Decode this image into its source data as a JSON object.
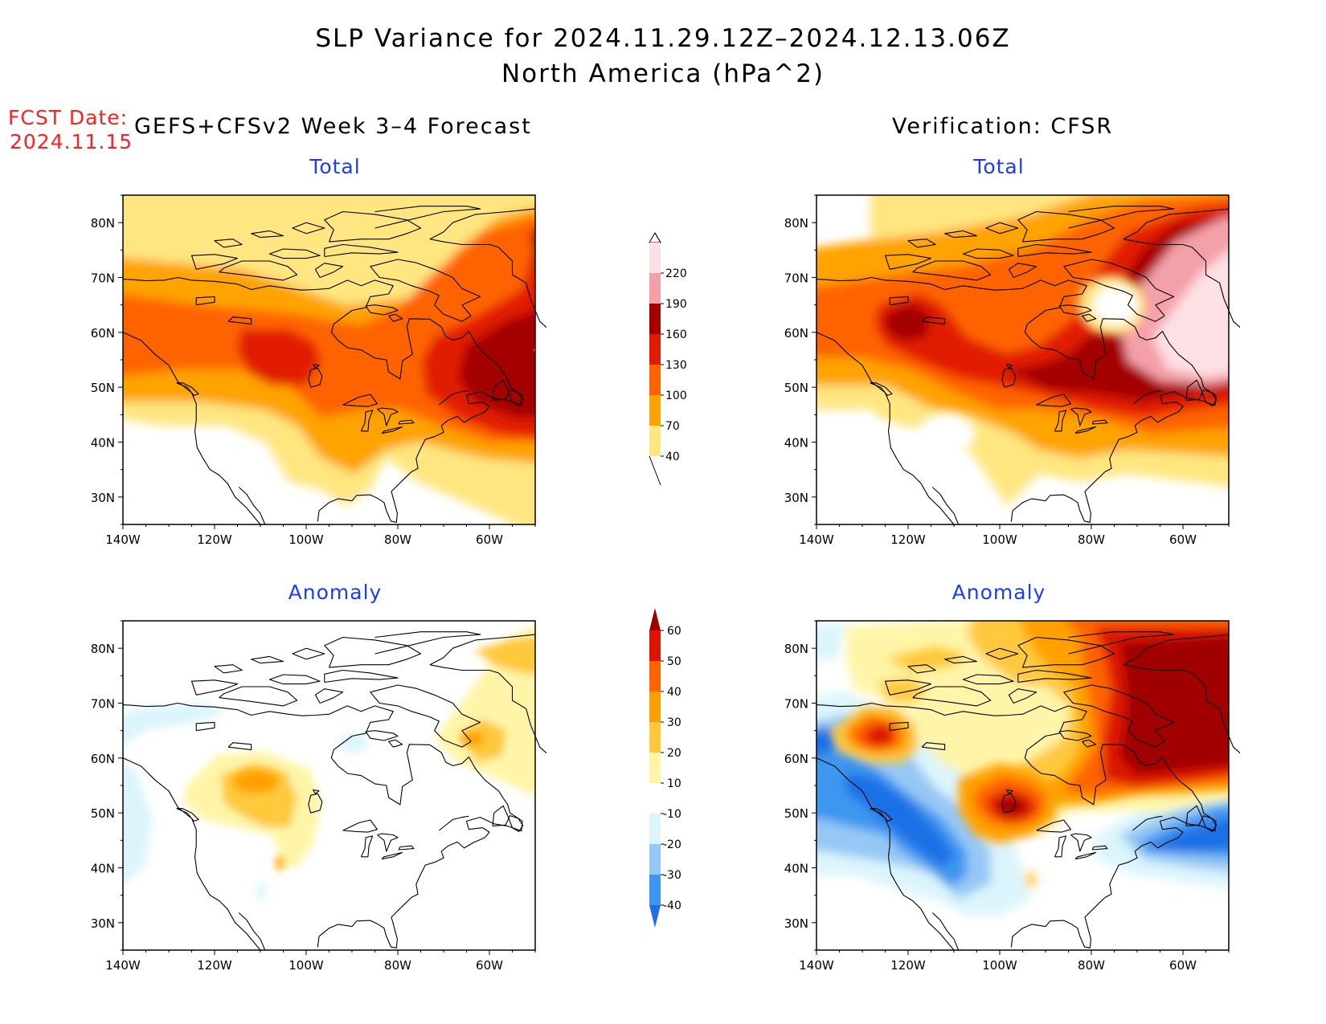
{
  "title": {
    "line1": "SLP Variance for 2024.11.29.12Z–2024.12.13.06Z",
    "line2": "North America (hPa^2)"
  },
  "fcst_date": {
    "label": "FCST Date:",
    "value": "2024.11.15"
  },
  "left_header": "GEFS+CFSv2 Week 3–4 Forecast",
  "right_header": "Verification: CFSR",
  "panels": [
    {
      "id": "fcst-total",
      "title": "Total"
    },
    {
      "id": "verif-total",
      "title": "Total"
    },
    {
      "id": "fcst-anomaly",
      "title": "Anomaly"
    },
    {
      "id": "verif-anomaly",
      "title": "Anomaly"
    }
  ],
  "axes": {
    "lat_labels": [
      "80N",
      "70N",
      "60N",
      "50N",
      "40N",
      "30N"
    ],
    "lon_labels": [
      "140W",
      "120W",
      "100W",
      "80W",
      "60W"
    ]
  },
  "total_colorbar": {
    "levels": [
      "40",
      "70",
      "100",
      "130",
      "160",
      "190",
      "220"
    ],
    "colors": [
      "#ffe680",
      "#ffa300",
      "#ff6400",
      "#e11b00",
      "#a50000",
      "#f4a0a8",
      "#fde0e4"
    ]
  },
  "anomaly_colorbar": {
    "levels": [
      "-40",
      "-30",
      "-20",
      "-10",
      "10",
      "20",
      "30",
      "40",
      "50",
      "60"
    ],
    "colors": [
      "#1e6fe6",
      "#3c96f0",
      "#96c8f5",
      "#dcf5fc",
      "#ffffff",
      "#fff5a8",
      "#ffc83c",
      "#ffa000",
      "#ff6400",
      "#dc1400",
      "#a00000"
    ]
  }
}
